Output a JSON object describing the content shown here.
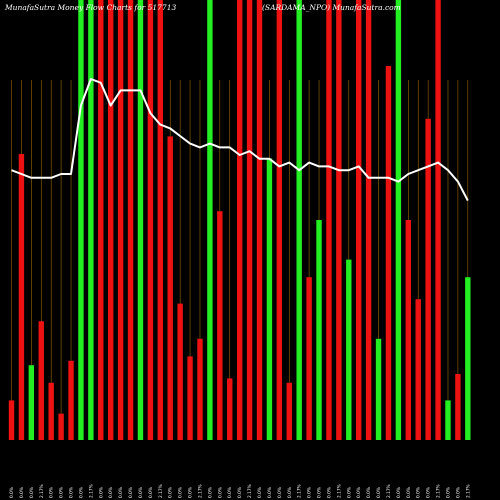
{
  "header": {
    "left": "MunafaSutra  Money Flow  Charts for 517713",
    "right": "(SARDAMA_NPO) MunafaSutra.com"
  },
  "colors": {
    "background": "#000000",
    "up_bar": "#22ee22",
    "down_bar": "#ee1111",
    "grid_line": "#9a6a00",
    "line": "#ffffff"
  },
  "chart_data": {
    "type": "bar",
    "title": "MunafaSutra  Money Flow  Charts for 517713",
    "subtitle": "(SARDAMA_NPO) MunafaSutra.com",
    "categories": [
      "0.0%",
      "0.0%",
      "0.0%",
      "2.17%",
      "0.0%",
      "0.0%",
      "0.0%",
      "0.0%",
      "2.17%",
      "0.0%",
      "0.0%",
      "0.0%",
      "0.0%",
      "0.0%",
      "0.0%",
      "2.17%",
      "0.0%",
      "0.0%",
      "0.0%",
      "2.17%",
      "0.0%",
      "0.0%",
      "0.0%",
      "0.0%",
      "2.17%",
      "0.0%",
      "0.0%",
      "0.0%",
      "0.0%",
      "2.17%",
      "0.0%",
      "0.0%",
      "0.0%",
      "2.17%",
      "0.0%",
      "0.0%",
      "0.0%",
      "0.0%",
      "2.17%",
      "0.0%",
      "0.0%",
      "0.0%",
      "0.0%",
      "2.17%",
      "0.0%",
      "0.0%",
      "2.17%"
    ],
    "bars": {
      "directions": [
        "down",
        "down",
        "up",
        "down",
        "down",
        "down",
        "down",
        "up",
        "up",
        "down",
        "down",
        "down",
        "down",
        "up",
        "down",
        "down",
        "down",
        "down",
        "down",
        "down",
        "up",
        "down",
        "down",
        "down",
        "down",
        "down",
        "up",
        "down",
        "down",
        "up",
        "down",
        "up",
        "down",
        "down",
        "up",
        "down",
        "down",
        "up",
        "down",
        "up",
        "down",
        "down",
        "down",
        "down",
        "up",
        "down",
        "up"
      ],
      "values": [
        9,
        65,
        17,
        27,
        13,
        6,
        18,
        100,
        100,
        100,
        100,
        100,
        100,
        100,
        100,
        100,
        69,
        31,
        19,
        23,
        100,
        52,
        14,
        100,
        100,
        100,
        64,
        100,
        13,
        100,
        37,
        50,
        100,
        100,
        41,
        100,
        100,
        23,
        85,
        100,
        50,
        32,
        73,
        100,
        9,
        15,
        37
      ]
    },
    "line": {
      "values": [
        71,
        70,
        69,
        69,
        69,
        70,
        70,
        88,
        95,
        94,
        88,
        92,
        92,
        92,
        86,
        83,
        82,
        80,
        78,
        77,
        78,
        77,
        77,
        75,
        76,
        74,
        74,
        72,
        73,
        71,
        73,
        72,
        72,
        71,
        71,
        72,
        69,
        69,
        69,
        68,
        70,
        71,
        72,
        73,
        71,
        68,
        63
      ]
    },
    "ylim": [
      0,
      100
    ],
    "grid": "vertical",
    "legend": "none"
  }
}
